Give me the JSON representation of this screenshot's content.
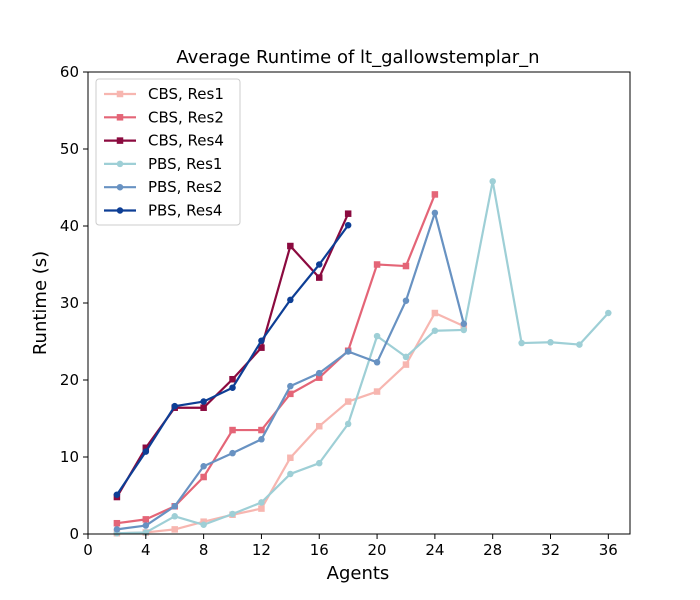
{
  "chart_data": {
    "type": "line",
    "title": "Average Runtime of lt_gallowstemplar_n",
    "xlabel": "Agents",
    "ylabel": "Runtime (s)",
    "xlim": [
      0,
      37.5
    ],
    "ylim": [
      0,
      60
    ],
    "xticks": [
      0,
      4,
      8,
      12,
      16,
      20,
      24,
      28,
      32,
      36
    ],
    "yticks": [
      0,
      10,
      20,
      30,
      40,
      50,
      60
    ],
    "grid": false,
    "legend_position": "top-left",
    "series": [
      {
        "name": "CBS, Res1",
        "color": "#f7b6b0",
        "marker": "square",
        "x": [
          2,
          4,
          6,
          8,
          10,
          12,
          14,
          16,
          18,
          20,
          22,
          24,
          26
        ],
        "y": [
          0.1,
          0.2,
          0.6,
          1.6,
          2.5,
          3.3,
          9.9,
          14.0,
          17.2,
          18.5,
          22.0,
          28.7,
          27.0
        ]
      },
      {
        "name": "CBS, Res2",
        "color": "#e46577",
        "marker": "square",
        "x": [
          2,
          4,
          6,
          8,
          10,
          12,
          14,
          16,
          18,
          20,
          22,
          24
        ],
        "y": [
          1.4,
          1.9,
          3.6,
          7.4,
          13.5,
          13.5,
          18.2,
          20.3,
          23.8,
          35.0,
          34.8,
          44.1
        ]
      },
      {
        "name": "CBS, Res4",
        "color": "#8b0a3f",
        "marker": "square",
        "x": [
          2,
          4,
          6,
          8,
          10,
          12,
          14,
          16,
          18
        ],
        "y": [
          4.8,
          11.2,
          16.4,
          16.4,
          20.1,
          24.2,
          37.4,
          33.3,
          41.6
        ]
      },
      {
        "name": "PBS, Res1",
        "color": "#9ecfd6",
        "marker": "circle",
        "x": [
          2,
          4,
          6,
          8,
          10,
          12,
          14,
          16,
          18,
          20,
          22,
          24,
          26,
          28,
          30,
          32,
          34,
          36
        ],
        "y": [
          0.1,
          0.2,
          2.3,
          1.2,
          2.6,
          4.1,
          7.8,
          9.2,
          14.3,
          25.7,
          23.0,
          26.4,
          26.5,
          45.8,
          24.8,
          24.9,
          24.6,
          28.7
        ]
      },
      {
        "name": "PBS, Res2",
        "color": "#6892c2",
        "marker": "circle",
        "x": [
          2,
          4,
          6,
          8,
          10,
          12,
          14,
          16,
          18,
          20,
          22,
          24,
          26
        ],
        "y": [
          0.6,
          1.1,
          3.6,
          8.8,
          10.5,
          12.3,
          19.2,
          20.9,
          23.7,
          22.3,
          30.3,
          41.7,
          27.3
        ]
      },
      {
        "name": "PBS, Res4",
        "color": "#0d3e95",
        "marker": "circle",
        "x": [
          2,
          4,
          6,
          8,
          10,
          12,
          14,
          16,
          18
        ],
        "y": [
          5.1,
          10.7,
          16.6,
          17.2,
          19.0,
          25.1,
          30.4,
          35.0,
          40.1
        ]
      }
    ]
  }
}
